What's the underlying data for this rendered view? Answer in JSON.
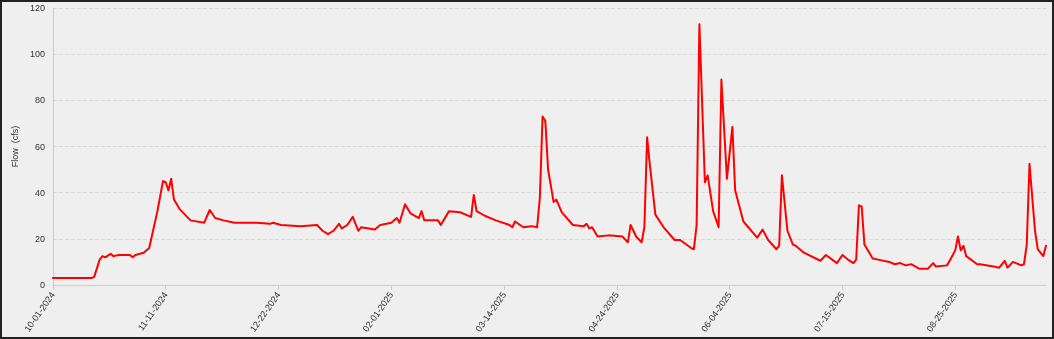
{
  "chart_data": {
    "type": "line",
    "ylabel": "Flow  (cfs)",
    "x": [
      "2024-10-01",
      "2024-10-09",
      "2024-10-15",
      "2024-10-16",
      "2024-10-18",
      "2024-10-19",
      "2024-10-20",
      "2024-10-22",
      "2024-10-23",
      "2024-10-25",
      "2024-10-29",
      "2024-10-30",
      "2024-10-31",
      "2024-11-03",
      "2024-11-05",
      "2024-11-08",
      "2024-11-10",
      "2024-11-11",
      "2024-11-12",
      "2024-11-13",
      "2024-11-14",
      "2024-11-16",
      "2024-11-20",
      "2024-11-25",
      "2024-11-27",
      "2024-11-29",
      "2024-12-02",
      "2024-12-06",
      "2024-12-14",
      "2024-12-19",
      "2024-12-20",
      "2024-12-23",
      "2024-12-30",
      "2025-01-05",
      "2025-01-07",
      "2025-01-09",
      "2025-01-11",
      "2025-01-13",
      "2025-01-14",
      "2025-01-16",
      "2025-01-18",
      "2025-01-20",
      "2025-01-21",
      "2025-01-26",
      "2025-01-28",
      "2025-02-01",
      "2025-02-03",
      "2025-02-04",
      "2025-02-06",
      "2025-02-08",
      "2025-02-11",
      "2025-02-12",
      "2025-02-13",
      "2025-02-16",
      "2025-02-18",
      "2025-02-19",
      "2025-02-22",
      "2025-02-26",
      "2025-03-02",
      "2025-03-03",
      "2025-03-04",
      "2025-03-07",
      "2025-03-11",
      "2025-03-16",
      "2025-03-17",
      "2025-03-18",
      "2025-03-21",
      "2025-03-24",
      "2025-03-26",
      "2025-03-27",
      "2025-03-28",
      "2025-03-29",
      "2025-03-30",
      "2025-04-01",
      "2025-04-02",
      "2025-04-04",
      "2025-04-08",
      "2025-04-12",
      "2025-04-13",
      "2025-04-14",
      "2025-04-15",
      "2025-04-17",
      "2025-04-21",
      "2025-04-26",
      "2025-04-28",
      "2025-04-29",
      "2025-05-01",
      "2025-05-03",
      "2025-05-04",
      "2025-05-05",
      "2025-05-06",
      "2025-05-08",
      "2025-05-11",
      "2025-05-15",
      "2025-05-17",
      "2025-05-21",
      "2025-05-22",
      "2025-05-23",
      "2025-05-24",
      "2025-05-26",
      "2025-05-27",
      "2025-05-29",
      "2025-05-31",
      "2025-06-01",
      "2025-06-03",
      "2025-06-05",
      "2025-06-06",
      "2025-06-09",
      "2025-06-14",
      "2025-06-16",
      "2025-06-18",
      "2025-06-21",
      "2025-06-22",
      "2025-06-23",
      "2025-06-25",
      "2025-06-27",
      "2025-06-28",
      "2025-07-01",
      "2025-07-07",
      "2025-07-09",
      "2025-07-13",
      "2025-07-15",
      "2025-07-17",
      "2025-07-19",
      "2025-07-20",
      "2025-07-21",
      "2025-07-22",
      "2025-07-23",
      "2025-07-26",
      "2025-07-28",
      "2025-08-01",
      "2025-08-03",
      "2025-08-05",
      "2025-08-07",
      "2025-08-09",
      "2025-08-12",
      "2025-08-15",
      "2025-08-17",
      "2025-08-18",
      "2025-08-22",
      "2025-08-23",
      "2025-08-25",
      "2025-08-26",
      "2025-08-27",
      "2025-08-28",
      "2025-08-29",
      "2025-09-02",
      "2025-09-03",
      "2025-09-08",
      "2025-09-10",
      "2025-09-12",
      "2025-09-13",
      "2025-09-15",
      "2025-09-18",
      "2025-09-19",
      "2025-09-20",
      "2025-09-21",
      "2025-09-23",
      "2025-09-24",
      "2025-09-26",
      "2025-09-27"
    ],
    "series": [
      {
        "color": "#ff0000",
        "values": [
          3,
          3,
          3,
          3.5,
          11,
          12.5,
          12,
          13.5,
          12.5,
          13,
          13,
          12,
          13,
          14,
          16,
          32,
          45,
          44.5,
          41,
          46,
          37,
          33,
          28,
          27,
          32.5,
          29,
          28,
          27,
          27,
          26.5,
          27,
          26,
          25.5,
          26,
          23.5,
          22,
          23.5,
          26.5,
          24.5,
          26,
          29.5,
          23.5,
          25,
          24,
          26,
          27,
          29,
          27,
          35,
          31,
          29,
          32,
          28,
          28,
          28,
          26,
          32,
          31.5,
          29.5,
          39,
          32,
          30,
          28,
          26,
          25,
          27.5,
          25,
          25.5,
          25,
          37.5,
          73,
          71,
          50,
          36,
          37,
          31.5,
          26,
          25.5,
          26.5,
          24.5,
          25,
          21,
          21.5,
          21,
          18.5,
          26,
          21,
          18.5,
          25,
          64,
          52,
          30.5,
          25,
          19.5,
          19.5,
          16,
          15.5,
          26,
          113,
          44.5,
          47.5,
          32,
          25,
          89,
          46,
          68.5,
          41,
          27.5,
          20.5,
          24,
          19.5,
          15.5,
          17,
          47.5,
          23.5,
          17.5,
          17,
          14,
          10.5,
          13,
          9.5,
          13,
          11,
          9.5,
          11,
          34.5,
          34,
          17.5,
          11.5,
          11,
          10,
          9,
          9.5,
          8.5,
          9,
          7,
          7,
          9.5,
          8,
          8.5,
          10.5,
          15,
          21,
          15,
          17,
          12.5,
          9,
          9,
          8,
          7.5,
          10.5,
          7.5,
          10,
          8.5,
          9,
          17.5,
          52.5,
          23.5,
          15.5,
          12.5,
          17
        ]
      }
    ],
    "xlim": [
      "2024-10-01",
      "2025-09-27"
    ],
    "xticks": [
      {
        "value": "2024-10-01",
        "label": "10-01-2024"
      },
      {
        "value": "2024-11-11",
        "label": "11-11-2024"
      },
      {
        "value": "2024-12-22",
        "label": "12-22-2024"
      },
      {
        "value": "2025-02-01",
        "label": "02-01-2025"
      },
      {
        "value": "2025-03-14",
        "label": "03-14-2025"
      },
      {
        "value": "2025-04-24",
        "label": "04-24-2025"
      },
      {
        "value": "2025-06-04",
        "label": "06-04-2025"
      },
      {
        "value": "2025-07-15",
        "label": "07-15-2025"
      },
      {
        "value": "2025-08-25",
        "label": "08-25-2025"
      }
    ],
    "ylim": [
      0,
      120
    ],
    "yticks": [
      0,
      20,
      40,
      60,
      80,
      100,
      120
    ],
    "grid": "y",
    "marker": "none",
    "line_style": "solid"
  }
}
